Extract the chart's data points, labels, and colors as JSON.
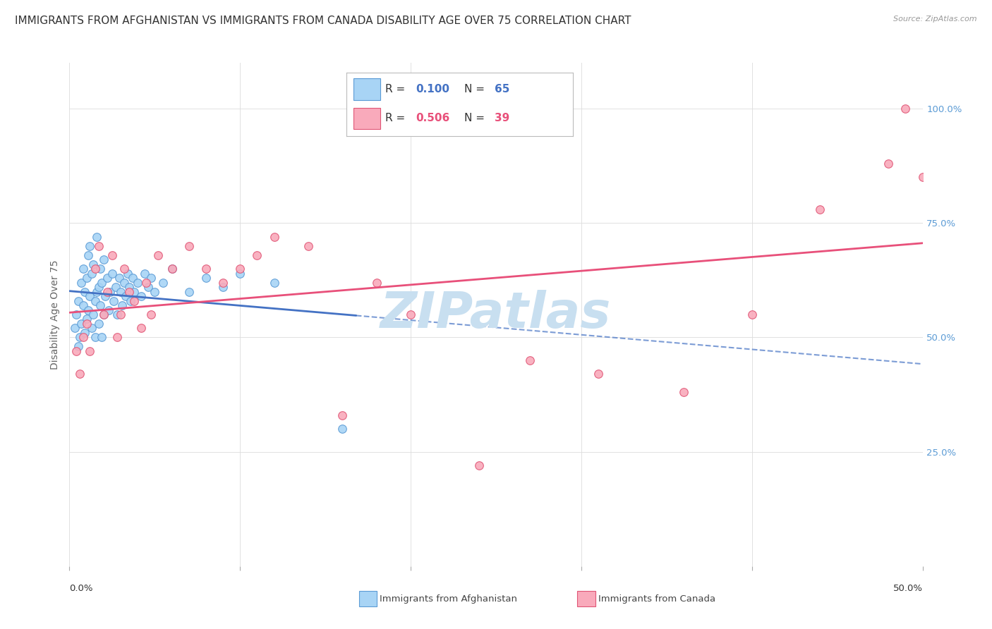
{
  "title": "IMMIGRANTS FROM AFGHANISTAN VS IMMIGRANTS FROM CANADA DISABILITY AGE OVER 75 CORRELATION CHART",
  "source": "Source: ZipAtlas.com",
  "ylabel": "Disability Age Over 75",
  "xlim": [
    0.0,
    0.5
  ],
  "ylim": [
    0.0,
    1.1
  ],
  "afghanistan_R": 0.1,
  "afghanistan_N": 65,
  "canada_R": 0.506,
  "canada_N": 39,
  "afghanistan_color": "#A8D4F5",
  "afghanistan_edge_color": "#5B9BD5",
  "canada_color": "#F9AABB",
  "canada_edge_color": "#E05575",
  "afghanistan_line_color": "#4472C4",
  "canada_line_color": "#E8507A",
  "grid_color": "#DDDDDD",
  "right_tick_color": "#5B9BD5",
  "title_fontsize": 11,
  "axis_label_fontsize": 10,
  "tick_fontsize": 9.5,
  "watermark_text": "ZIPatlas",
  "watermark_color": "#C8DFF0",
  "afghanistan_x": [
    0.003,
    0.004,
    0.005,
    0.005,
    0.006,
    0.007,
    0.007,
    0.008,
    0.008,
    0.009,
    0.009,
    0.01,
    0.01,
    0.011,
    0.011,
    0.012,
    0.012,
    0.013,
    0.013,
    0.014,
    0.014,
    0.015,
    0.015,
    0.016,
    0.016,
    0.017,
    0.017,
    0.018,
    0.018,
    0.019,
    0.019,
    0.02,
    0.02,
    0.021,
    0.022,
    0.023,
    0.024,
    0.025,
    0.026,
    0.027,
    0.028,
    0.029,
    0.03,
    0.031,
    0.032,
    0.033,
    0.034,
    0.035,
    0.036,
    0.037,
    0.038,
    0.04,
    0.042,
    0.044,
    0.046,
    0.048,
    0.05,
    0.055,
    0.06,
    0.07,
    0.08,
    0.09,
    0.1,
    0.12,
    0.16
  ],
  "afghanistan_y": [
    0.52,
    0.55,
    0.48,
    0.58,
    0.5,
    0.53,
    0.62,
    0.57,
    0.65,
    0.51,
    0.6,
    0.54,
    0.63,
    0.56,
    0.68,
    0.59,
    0.7,
    0.52,
    0.64,
    0.55,
    0.66,
    0.5,
    0.58,
    0.6,
    0.72,
    0.53,
    0.61,
    0.57,
    0.65,
    0.5,
    0.62,
    0.55,
    0.67,
    0.59,
    0.63,
    0.56,
    0.6,
    0.64,
    0.58,
    0.61,
    0.55,
    0.63,
    0.6,
    0.57,
    0.62,
    0.59,
    0.64,
    0.61,
    0.58,
    0.63,
    0.6,
    0.62,
    0.59,
    0.64,
    0.61,
    0.63,
    0.6,
    0.62,
    0.65,
    0.6,
    0.63,
    0.61,
    0.64,
    0.62,
    0.3
  ],
  "canada_x": [
    0.004,
    0.006,
    0.008,
    0.01,
    0.012,
    0.015,
    0.017,
    0.02,
    0.022,
    0.025,
    0.028,
    0.03,
    0.032,
    0.035,
    0.038,
    0.042,
    0.045,
    0.048,
    0.052,
    0.06,
    0.07,
    0.08,
    0.09,
    0.1,
    0.11,
    0.12,
    0.14,
    0.16,
    0.18,
    0.2,
    0.24,
    0.27,
    0.31,
    0.36,
    0.4,
    0.44,
    0.48,
    0.49,
    0.5
  ],
  "canada_y": [
    0.47,
    0.42,
    0.5,
    0.53,
    0.47,
    0.65,
    0.7,
    0.55,
    0.6,
    0.68,
    0.5,
    0.55,
    0.65,
    0.6,
    0.58,
    0.52,
    0.62,
    0.55,
    0.68,
    0.65,
    0.7,
    0.65,
    0.62,
    0.65,
    0.68,
    0.72,
    0.7,
    0.33,
    0.62,
    0.55,
    0.22,
    0.45,
    0.42,
    0.38,
    0.55,
    0.78,
    0.88,
    1.0,
    0.85
  ]
}
